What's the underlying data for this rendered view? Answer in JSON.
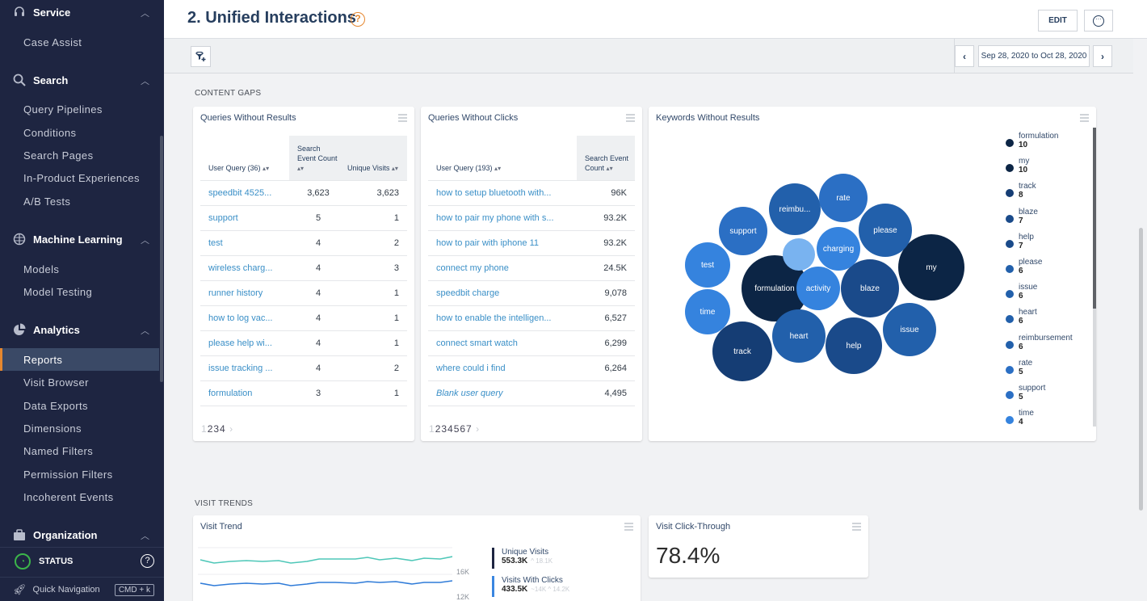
{
  "sidebar": {
    "sections": [
      {
        "label": "Service",
        "icon": "headset-icon",
        "items": [
          "Case Assist"
        ]
      },
      {
        "label": "Search",
        "icon": "search-icon",
        "items": [
          "Query Pipelines",
          "Conditions",
          "Search Pages",
          "In-Product Experiences",
          "A/B Tests"
        ]
      },
      {
        "label": "Machine Learning",
        "icon": "brain-icon",
        "items": [
          "Models",
          "Model Testing"
        ]
      },
      {
        "label": "Analytics",
        "icon": "pie-chart-icon",
        "items": [
          "Reports",
          "Visit Browser",
          "Data Exports",
          "Dimensions",
          "Named Filters",
          "Permission Filters",
          "Incoherent Events"
        ]
      },
      {
        "label": "Organization",
        "icon": "briefcase-icon",
        "items": []
      }
    ],
    "active_item": "Reports",
    "status_label": "STATUS",
    "quick_nav_label": "Quick Navigation",
    "quick_nav_shortcut": "CMD + k"
  },
  "header": {
    "title": "2. Unified Interactions",
    "help": "?",
    "edit_label": "EDIT",
    "more_label": "···"
  },
  "toolbar": {
    "filter_label": "add filter",
    "date_range": "Sep 28, 2020 to Oct 28, 2020",
    "prev": "‹",
    "next": "›"
  },
  "content_gaps": {
    "section_label": "CONTENT GAPS",
    "queries_without_results": {
      "title": "Queries Without Results",
      "columns": [
        "User Query (36)",
        "Search Event Count",
        "Unique Visits"
      ],
      "rows": [
        {
          "query": "speedbit 4525...",
          "count": "3,623",
          "visits": "3,623"
        },
        {
          "query": "support",
          "count": "5",
          "visits": "1"
        },
        {
          "query": "test",
          "count": "4",
          "visits": "2"
        },
        {
          "query": "wireless charg...",
          "count": "4",
          "visits": "3"
        },
        {
          "query": "runner history",
          "count": "4",
          "visits": "1"
        },
        {
          "query": "how to log vac...",
          "count": "4",
          "visits": "1"
        },
        {
          "query": "please help wi...",
          "count": "4",
          "visits": "1"
        },
        {
          "query": "issue tracking ...",
          "count": "4",
          "visits": "2"
        },
        {
          "query": "formulation",
          "count": "3",
          "visits": "1"
        }
      ],
      "pager": {
        "current": "1",
        "pages": "234",
        "next": "›"
      }
    },
    "queries_without_clicks": {
      "title": "Queries Without Clicks",
      "columns": [
        "User Query (193)",
        "Search Event Count"
      ],
      "rows": [
        {
          "query": "how to setup bluetooth with...",
          "count": "96K"
        },
        {
          "query": "how to pair my phone with s...",
          "count": "93.2K"
        },
        {
          "query": "how to pair with iphone 11",
          "count": "93.2K"
        },
        {
          "query": "connect my phone",
          "count": "24.5K"
        },
        {
          "query": "speedbit charge",
          "count": "9,078"
        },
        {
          "query": "how to enable the intelligen...",
          "count": "6,527"
        },
        {
          "query": "connect smart watch",
          "count": "6,299"
        },
        {
          "query": "where could i find",
          "count": "6,264"
        },
        {
          "query": "Blank user query",
          "count": "4,495"
        }
      ],
      "pager": {
        "current": "1",
        "pages": "234567",
        "next": "›"
      }
    },
    "keywords_without_results": {
      "title": "Keywords Without Results",
      "legend": [
        {
          "name": "formulation",
          "value": "10",
          "color": "#0c2545"
        },
        {
          "name": "my",
          "value": "10",
          "color": "#0c2545"
        },
        {
          "name": "track",
          "value": "8",
          "color": "#153d74"
        },
        {
          "name": "blaze",
          "value": "7",
          "color": "#1a4a8a"
        },
        {
          "name": "help",
          "value": "7",
          "color": "#1a4a8a"
        },
        {
          "name": "please",
          "value": "6",
          "color": "#2260ab"
        },
        {
          "name": "issue",
          "value": "6",
          "color": "#2260ab"
        },
        {
          "name": "heart",
          "value": "6",
          "color": "#2260ab"
        },
        {
          "name": "reimbursement",
          "value": "6",
          "color": "#2260ab"
        },
        {
          "name": "rate",
          "value": "5",
          "color": "#2b6fc4"
        },
        {
          "name": "support",
          "value": "5",
          "color": "#2b6fc4"
        },
        {
          "name": "time",
          "value": "4",
          "color": "#3583de"
        }
      ],
      "bubbles": [
        {
          "label": "formulation",
          "value": 10,
          "color": "#0c2545"
        },
        {
          "label": "my",
          "value": 10,
          "color": "#0c2545"
        },
        {
          "label": "track",
          "value": 8,
          "color": "#153d74"
        },
        {
          "label": "blaze",
          "value": 7,
          "color": "#1a4a8a"
        },
        {
          "label": "help",
          "value": 7,
          "color": "#1a4a8a"
        },
        {
          "label": "please",
          "value": 6,
          "color": "#2260ab"
        },
        {
          "label": "issue",
          "value": 6,
          "color": "#2260ab"
        },
        {
          "label": "heart",
          "value": 6,
          "color": "#2260ab"
        },
        {
          "label": "reimbu...",
          "value": 6,
          "color": "#2260ab"
        },
        {
          "label": "rate",
          "value": 5,
          "color": "#2b6fc4"
        },
        {
          "label": "support",
          "value": 5,
          "color": "#2b6fc4"
        },
        {
          "label": "time",
          "value": 4,
          "color": "#3583de"
        },
        {
          "label": "test",
          "value": 4,
          "color": "#3583de"
        },
        {
          "label": "charging",
          "value": 4,
          "color": "#3583de"
        },
        {
          "label": "activity",
          "value": 4,
          "color": "#3583de"
        },
        {
          "label": "",
          "value": 2,
          "color": "#79b3f0"
        }
      ]
    }
  },
  "visit_trends": {
    "section_label": "VISIT TRENDS",
    "visit_trend": {
      "title": "Visit Trend",
      "y_ticks": [
        "16K",
        "12K"
      ],
      "series": [
        {
          "name": "Unique Visits",
          "total": "553.3K",
          "sub": "^ 18.1K",
          "color": "#1e2541",
          "line_color": "#4ec7b8"
        },
        {
          "name": "Visits With Clicks",
          "total": "433.5K",
          "sub": "~14K ^ 14.2K",
          "color": "#3a86e0",
          "line_color": "#2f7bd8"
        }
      ]
    },
    "visit_click_through": {
      "title": "Visit Click-Through",
      "value": "78.4%"
    }
  }
}
